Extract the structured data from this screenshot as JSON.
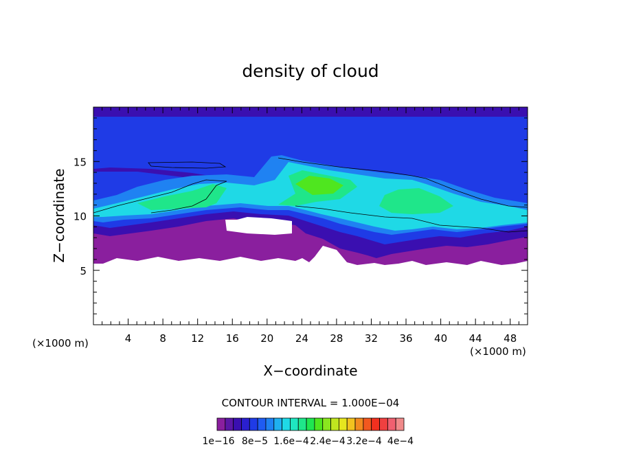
{
  "chart_data": {
    "type": "heatmap",
    "title": "density of cloud",
    "xlabel": "X−coordinate",
    "ylabel": "Z−coordinate",
    "x_unit_left": "(×1000 m)",
    "x_unit_right": "(×1000 m)",
    "xlim": [
      0,
      50
    ],
    "ylim": [
      0,
      20
    ],
    "x_ticks": [
      4,
      8,
      12,
      16,
      20,
      24,
      28,
      32,
      36,
      40,
      44,
      48
    ],
    "y_ticks": [
      5,
      10,
      15
    ],
    "contour_interval_text": "CONTOUR INTERVAL = 1.000E−04",
    "colorbar": {
      "labels": [
        "1e−16",
        "8e−5",
        "1.6e−4",
        "2.4e−4",
        "3.2e−4",
        "4e−4"
      ],
      "colors": [
        "#8a1f9e",
        "#5b17a6",
        "#3a0fb0",
        "#2a1fd0",
        "#1f3be6",
        "#1f5cf2",
        "#1f82f2",
        "#1fb0ef",
        "#1fd9e6",
        "#1fe6c0",
        "#1fe68a",
        "#1fe650",
        "#4fe61f",
        "#8ae61f",
        "#c0e61f",
        "#e6e61f",
        "#f2c21f",
        "#f28a1f",
        "#f2581f",
        "#f2301f",
        "#f04040",
        "#f06070",
        "#f08a8a"
      ]
    },
    "regions_km": {
      "cloud_base_approx": 6,
      "cloud_top_approx": 20,
      "clear_pocket": {
        "x": [
          15,
          23
        ],
        "z": [
          8.7,
          10
        ]
      },
      "high_density_core": {
        "x": [
          22,
          30
        ],
        "z": [
          11.5,
          15
        ]
      }
    }
  }
}
